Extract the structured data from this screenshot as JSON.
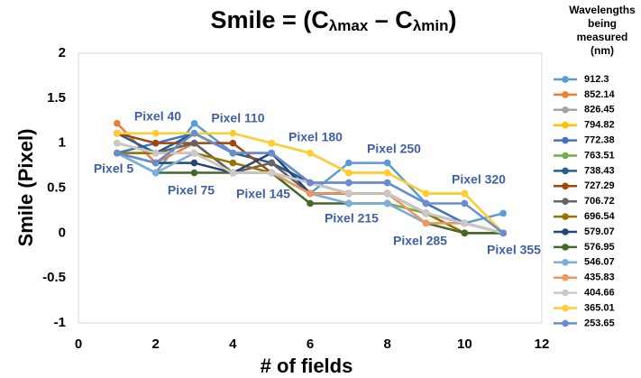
{
  "chart_data": {
    "type": "line",
    "title": [
      "Smile = (C",
      "λmax",
      " – C",
      "λmin",
      ")"
    ],
    "ylabel": "Smile (Pixel)",
    "xlabel": "# of fields",
    "legend_title": [
      "Wavelengths",
      "being",
      "measured",
      "(nm)"
    ],
    "legend": "right",
    "x": [
      1,
      2,
      3,
      4,
      5,
      6,
      7,
      8,
      9,
      10,
      11
    ],
    "xlim": [
      0,
      12
    ],
    "xticks": [
      0,
      2,
      4,
      6,
      8,
      10,
      12
    ],
    "ylim": [
      -1,
      2
    ],
    "yticks": [
      2,
      1.5,
      1,
      0.5,
      0,
      -0.5,
      -1
    ],
    "grid": false,
    "annotations": [
      "Pixel 5",
      "Pixel 40",
      "Pixel 75",
      "Pixel 110",
      "Pixel 145",
      "Pixel 180",
      "Pixel 215",
      "Pixel 250",
      "Pixel 285",
      "Pixel 320",
      "Pixel 355"
    ],
    "series": [
      {
        "name": "912.3",
        "color": "#5b9bd5",
        "values": [
          0.89,
          0.67,
          1.22,
          0.89,
          0.89,
          0.44,
          0.78,
          0.78,
          0.33,
          0.11,
          0.22
        ]
      },
      {
        "name": "852.14",
        "color": "#ed7d31",
        "values": [
          1.22,
          0.78,
          1.0,
          0.67,
          0.78,
          0.56,
          0.44,
          0.44,
          0.22,
          0.11,
          0
        ]
      },
      {
        "name": "826.45",
        "color": "#a5a5a5",
        "values": [
          1.0,
          0.89,
          0.89,
          0.67,
          0.67,
          0.56,
          0.44,
          0.44,
          0.22,
          0.11,
          0
        ]
      },
      {
        "name": "794.82",
        "color": "#ffc000",
        "values": [
          1.11,
          1.11,
          1.11,
          1.11,
          1.0,
          0.89,
          0.67,
          0.67,
          0.44,
          0.44,
          0
        ]
      },
      {
        "name": "772.38",
        "color": "#4472c4",
        "values": [
          0.89,
          1.0,
          1.11,
          0.89,
          0.89,
          0.56,
          0.56,
          0.56,
          0.33,
          0.11,
          0
        ]
      },
      {
        "name": "763.51",
        "color": "#70ad47",
        "values": [
          0.89,
          0.89,
          1.0,
          0.67,
          0.67,
          0.44,
          0.33,
          0.33,
          0.22,
          0,
          0
        ]
      },
      {
        "name": "738.43",
        "color": "#255e91",
        "values": [
          1.11,
          0.89,
          1.11,
          0.89,
          0.78,
          0.56,
          0.44,
          0.44,
          0.22,
          0.11,
          0
        ]
      },
      {
        "name": "727.29",
        "color": "#9e480e",
        "values": [
          1.11,
          1.0,
          1.0,
          1.0,
          0.67,
          0.56,
          0.44,
          0.44,
          0.22,
          0.11,
          0
        ]
      },
      {
        "name": "706.72",
        "color": "#636363",
        "values": [
          1.0,
          0.89,
          1.0,
          0.67,
          0.78,
          0.44,
          0.44,
          0.44,
          0.22,
          0.11,
          0
        ]
      },
      {
        "name": "696.54",
        "color": "#997300",
        "values": [
          0.89,
          0.89,
          0.89,
          0.78,
          0.67,
          0.44,
          0.44,
          0.44,
          0.22,
          0,
          0
        ]
      },
      {
        "name": "579.07",
        "color": "#264478",
        "values": [
          0.89,
          0.78,
          0.78,
          0.67,
          0.89,
          0.44,
          0.44,
          0.44,
          0.22,
          0.11,
          0
        ]
      },
      {
        "name": "576.95",
        "color": "#43682b",
        "values": [
          0.89,
          0.67,
          0.67,
          0.67,
          0.67,
          0.33,
          0.33,
          0.33,
          0.11,
          0,
          0
        ]
      },
      {
        "name": "546.07",
        "color": "#7cafdd",
        "values": [
          0.89,
          0.67,
          0.89,
          0.67,
          0.67,
          0.44,
          0.33,
          0.33,
          0.11,
          0.11,
          0
        ]
      },
      {
        "name": "435.83",
        "color": "#f1975a",
        "values": [
          1.0,
          0.89,
          0.89,
          0.67,
          0.67,
          0.44,
          0.44,
          0.44,
          0.11,
          0.11,
          0
        ]
      },
      {
        "name": "404.66",
        "color": "#c9c9c9",
        "values": [
          1.0,
          0.89,
          0.89,
          0.67,
          0.67,
          0.56,
          0.44,
          0.44,
          0.22,
          0.11,
          0
        ]
      },
      {
        "name": "365.01",
        "color": "#ffcd33",
        "values": [
          1.11,
          1.11,
          1.11,
          1.11,
          1.0,
          0.89,
          0.67,
          0.67,
          0.44,
          0.44,
          0
        ]
      },
      {
        "name": "253.65",
        "color": "#698ed0",
        "values": [
          0.89,
          0.78,
          1.11,
          0.89,
          0.89,
          0.56,
          0.56,
          0.56,
          0.33,
          0.33,
          0
        ]
      }
    ]
  }
}
